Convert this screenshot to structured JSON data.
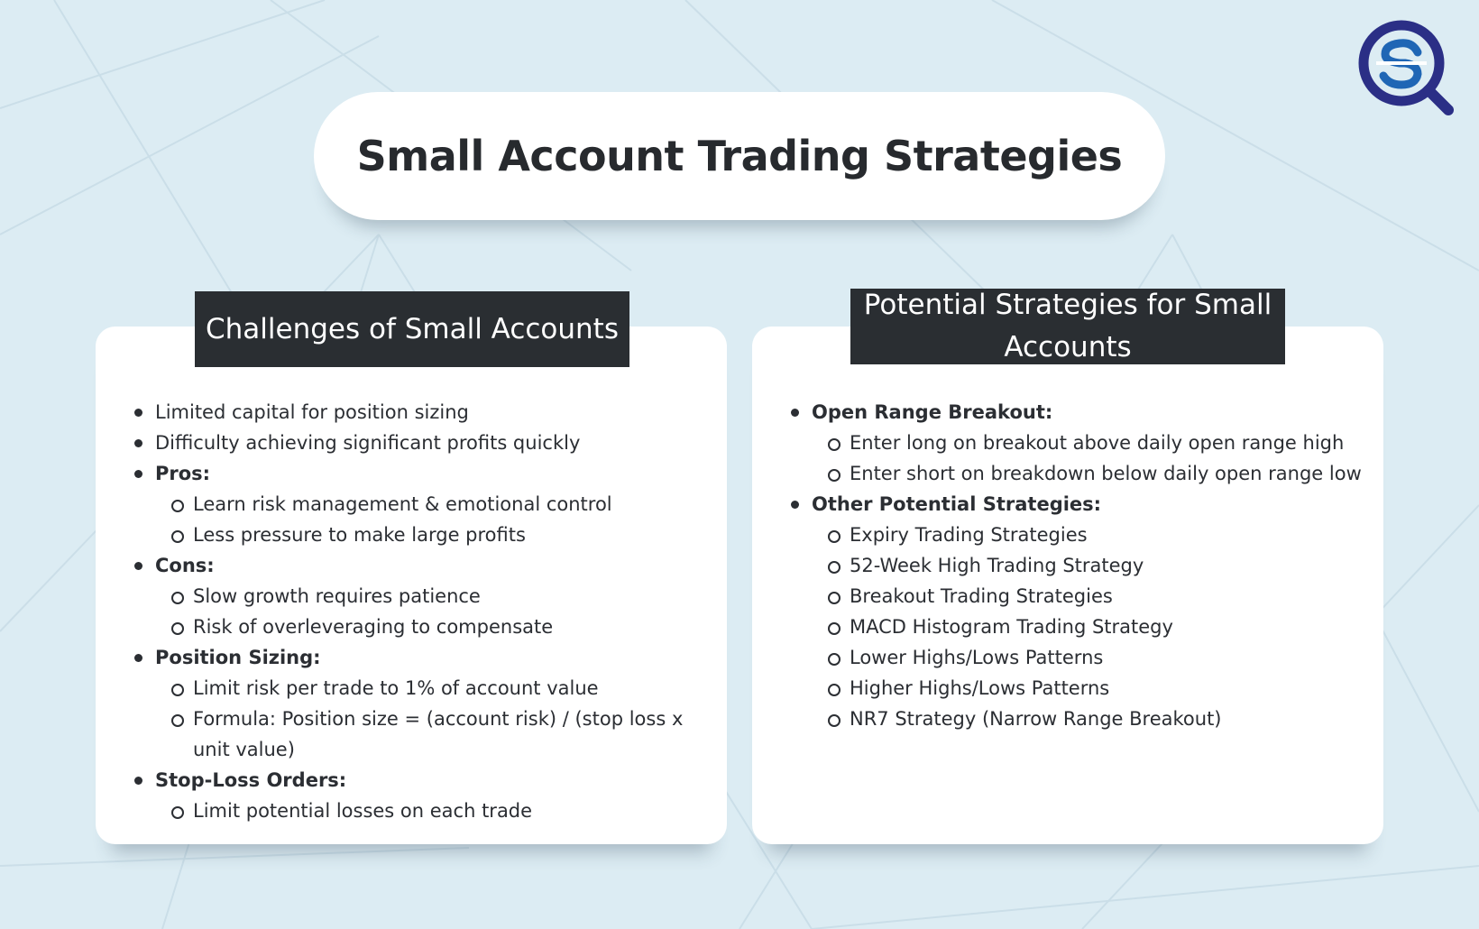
{
  "page": {
    "title": "Small Account Trading Strategies",
    "logo_icon": "search-s-logo-icon",
    "colors": {
      "background": "#dcecf3",
      "card": "#ffffff",
      "header_bar": "#2a2e32",
      "logo_blue": "#1f66b5",
      "logo_navy": "#2b2f86"
    }
  },
  "left_card": {
    "heading": "Challenges of Small Accounts",
    "items": [
      {
        "level": 1,
        "bold": false,
        "text": "Limited capital for position sizing"
      },
      {
        "level": 1,
        "bold": false,
        "text": "Difficulty achieving significant profits quickly"
      },
      {
        "level": 1,
        "bold": true,
        "text": "Pros:"
      },
      {
        "level": 2,
        "bold": false,
        "text": "Learn risk management & emotional control"
      },
      {
        "level": 2,
        "bold": false,
        "text": "Less pressure to make large profits"
      },
      {
        "level": 1,
        "bold": true,
        "text": "Cons:"
      },
      {
        "level": 2,
        "bold": false,
        "text": "Slow growth requires patience"
      },
      {
        "level": 2,
        "bold": false,
        "text": "Risk of overleveraging to compensate"
      },
      {
        "level": 1,
        "bold": true,
        "text": "Position Sizing:"
      },
      {
        "level": 2,
        "bold": false,
        "text": "Limit risk per trade to 1% of account value"
      },
      {
        "level": 2,
        "bold": false,
        "text": "Formula: Position size = (account risk) / (stop loss x unit value)"
      },
      {
        "level": 1,
        "bold": true,
        "text": "Stop-Loss Orders:"
      },
      {
        "level": 2,
        "bold": false,
        "text": "Limit potential losses on each trade"
      }
    ]
  },
  "right_card": {
    "heading": "Potential Strategies for Small Accounts",
    "items": [
      {
        "level": 1,
        "bold": true,
        "text": "Open Range Breakout:"
      },
      {
        "level": 2,
        "bold": false,
        "text": "Enter long on breakout above daily open range high"
      },
      {
        "level": 2,
        "bold": false,
        "text": "Enter short on breakdown below daily open range low"
      },
      {
        "level": 1,
        "bold": true,
        "text": "Other Potential Strategies:"
      },
      {
        "level": 2,
        "bold": false,
        "text": "Expiry Trading Strategies"
      },
      {
        "level": 2,
        "bold": false,
        "text": "52-Week High Trading Strategy"
      },
      {
        "level": 2,
        "bold": false,
        "text": "Breakout Trading Strategies"
      },
      {
        "level": 2,
        "bold": false,
        "text": "MACD Histogram Trading Strategy"
      },
      {
        "level": 2,
        "bold": false,
        "text": "Lower Highs/Lows Patterns"
      },
      {
        "level": 2,
        "bold": false,
        "text": "Higher Highs/Lows Patterns"
      },
      {
        "level": 2,
        "bold": false,
        "text": "NR7 Strategy (Narrow Range Breakout)"
      }
    ]
  }
}
